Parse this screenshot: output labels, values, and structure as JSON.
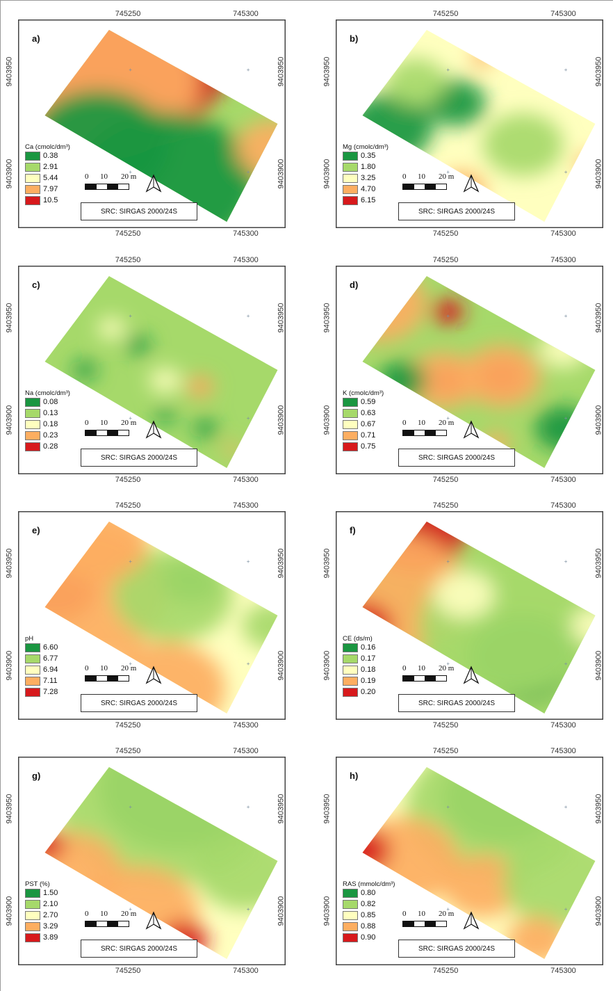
{
  "src_label": "SRC: SIRGAS 2000/24S",
  "x_ticks": [
    "745250",
    "745300"
  ],
  "y_ticks": [
    "9403950",
    "9403900"
  ],
  "scale": {
    "zero": "0",
    "mid": "10",
    "end": "20 m"
  },
  "colors": {
    "class1": "#1a9641",
    "class2": "#a6d96a",
    "class3": "#ffffbf",
    "class4": "#fdae61",
    "class5": "#d7191c"
  },
  "panels": [
    {
      "id": "a",
      "label": "a)",
      "legend_title": "Ca (cmolc/dm³)",
      "classes": [
        "0.38",
        "2.91",
        "5.44",
        "7.97",
        "10.5"
      ]
    },
    {
      "id": "b",
      "label": "b)",
      "legend_title": "Mg (cmolc/dm³)",
      "classes": [
        "0.35",
        "1.80",
        "3.25",
        "4.70",
        "6.15"
      ]
    },
    {
      "id": "c",
      "label": "c)",
      "legend_title": "Na (cmolc/dm³)",
      "classes": [
        "0.08",
        "0.13",
        "0.18",
        "0.23",
        "0.28"
      ]
    },
    {
      "id": "d",
      "label": "d)",
      "legend_title": "K (cmolc/dm³)",
      "classes": [
        "0.59",
        "0.63",
        "0.67",
        "0.71",
        "0.75"
      ]
    },
    {
      "id": "e",
      "label": "e)",
      "legend_title": "pH",
      "classes": [
        "6.60",
        "6.77",
        "6.94",
        "7.11",
        "7.28"
      ]
    },
    {
      "id": "f",
      "label": "f)",
      "legend_title": "CE (ds/m)",
      "classes": [
        "0.16",
        "0.17",
        "0.18",
        "0.19",
        "0.20"
      ]
    },
    {
      "id": "g",
      "label": "g)",
      "legend_title": "PST (%)",
      "classes": [
        "1.50",
        "2.10",
        "2.70",
        "3.29",
        "3.89"
      ]
    },
    {
      "id": "h",
      "label": "h)",
      "legend_title": "RAS (mmolc/dm³)",
      "classes": [
        "0.80",
        "0.82",
        "0.85",
        "0.88",
        "0.90"
      ]
    }
  ]
}
